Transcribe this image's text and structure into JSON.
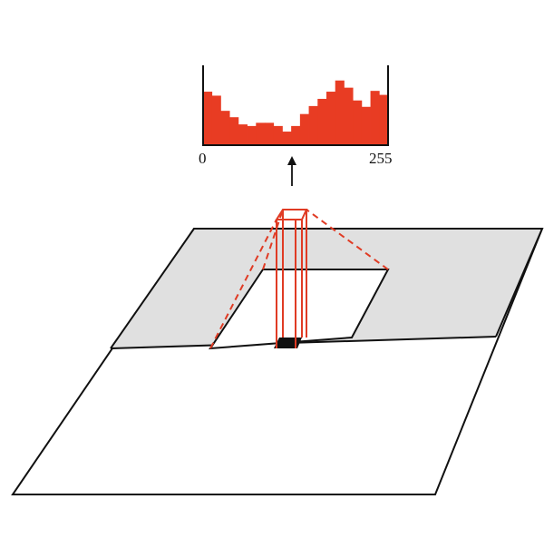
{
  "histogram": {
    "axis_min_label": "0",
    "axis_max_label": "255",
    "bin_heights": [
      0.67,
      0.62,
      0.43,
      0.35,
      0.26,
      0.24,
      0.28,
      0.28,
      0.24,
      0.17,
      0.24,
      0.39,
      0.49,
      0.58,
      0.67,
      0.81,
      0.72,
      0.56,
      0.48,
      0.68,
      0.63
    ],
    "fill_color": "#e83c23",
    "highlight_bin_index": 10
  },
  "colors": {
    "outline": "#111111",
    "accent": "#e03b24",
    "region_fill": "#e0e0e0",
    "page_fill": "#ffffff"
  },
  "icons": {
    "arrow": "up-arrow-icon"
  }
}
